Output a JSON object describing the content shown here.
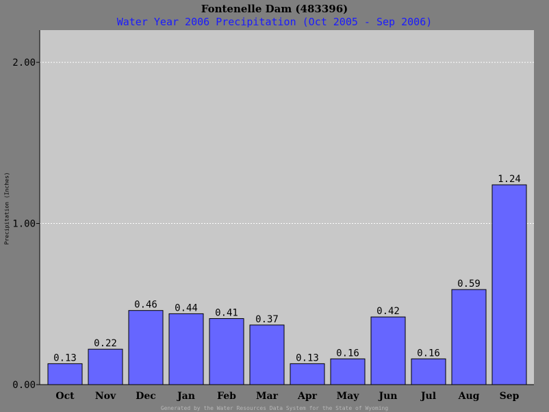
{
  "colors": {
    "background": "#7f7f7f",
    "plot_area": "#c8c8c8",
    "bar_fill": "#6666ff",
    "title": "#000000",
    "subtitle": "#1a1aff",
    "footer": "#b8b8b8"
  },
  "footer": "Generated by the Water Resources Data System for the State of Wyoming",
  "chart_data": {
    "type": "bar",
    "title": "Fontenelle Dam (483396)",
    "subtitle": "Water Year 2006 Precipitation (Oct 2005 - Sep 2006)",
    "xlabel": "",
    "ylabel": "Precipitation (Inches)",
    "ylim": [
      0,
      2.2
    ],
    "yticks": [
      0,
      1,
      2
    ],
    "ytick_labels": [
      "0.00",
      "1.00",
      "2.00"
    ],
    "grid": true,
    "categories": [
      "Oct",
      "Nov",
      "Dec",
      "Jan",
      "Feb",
      "Mar",
      "Apr",
      "May",
      "Jun",
      "Jul",
      "Aug",
      "Sep"
    ],
    "values": [
      0.13,
      0.22,
      0.46,
      0.44,
      0.41,
      0.37,
      0.13,
      0.16,
      0.42,
      0.16,
      0.59,
      1.24
    ],
    "value_labels": [
      "0.13",
      "0.22",
      "0.46",
      "0.44",
      "0.41",
      "0.37",
      "0.13",
      "0.16",
      "0.42",
      "0.16",
      "0.59",
      "1.24"
    ]
  }
}
